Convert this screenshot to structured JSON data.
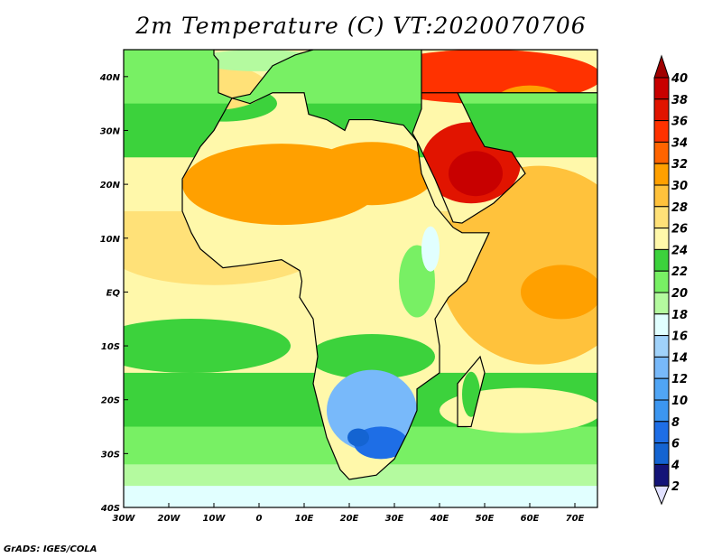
{
  "title": "2m Temperature (C) VT:2020070706",
  "credit": "GrADS: IGES/COLA",
  "x_axis": {
    "ticks": [
      {
        "label": "30W",
        "lon": -30
      },
      {
        "label": "20W",
        "lon": -20
      },
      {
        "label": "10W",
        "lon": -10
      },
      {
        "label": "0",
        "lon": 0
      },
      {
        "label": "10E",
        "lon": 10
      },
      {
        "label": "20E",
        "lon": 20
      },
      {
        "label": "30E",
        "lon": 30
      },
      {
        "label": "40E",
        "lon": 40
      },
      {
        "label": "50E",
        "lon": 50
      },
      {
        "label": "60E",
        "lon": 60
      },
      {
        "label": "70E",
        "lon": 70
      }
    ],
    "range": [
      -30,
      75
    ]
  },
  "y_axis": {
    "ticks": [
      {
        "label": "40N",
        "lat": 40
      },
      {
        "label": "30N",
        "lat": 30
      },
      {
        "label": "20N",
        "lat": 20
      },
      {
        "label": "10N",
        "lat": 10
      },
      {
        "label": "EQ",
        "lat": 0
      },
      {
        "label": "10S",
        "lat": -10
      },
      {
        "label": "20S",
        "lat": -20
      },
      {
        "label": "30S",
        "lat": -30
      },
      {
        "label": "40S",
        "lat": -40
      }
    ],
    "range": [
      -40,
      45
    ]
  },
  "colorbar": {
    "labels": [
      "40",
      "38",
      "36",
      "34",
      "32",
      "30",
      "28",
      "26",
      "24",
      "22",
      "20",
      "18",
      "16",
      "14",
      "12",
      "10",
      "8",
      "6",
      "4",
      "2"
    ],
    "colors_top_down": [
      "#a00000",
      "#c80000",
      "#e11400",
      "#ff3200",
      "#ff6400",
      "#ffa000",
      "#ffc23c",
      "#ffe178",
      "#fff8aa",
      "#3cd23c",
      "#78f064",
      "#b4fa9f",
      "#e1ffff",
      "#a0d2fa",
      "#78b9fa",
      "#50a5f5",
      "#3c96f0",
      "#1e6ee6",
      "#1464d2",
      "#141478",
      "#e1e1ff"
    ]
  }
}
